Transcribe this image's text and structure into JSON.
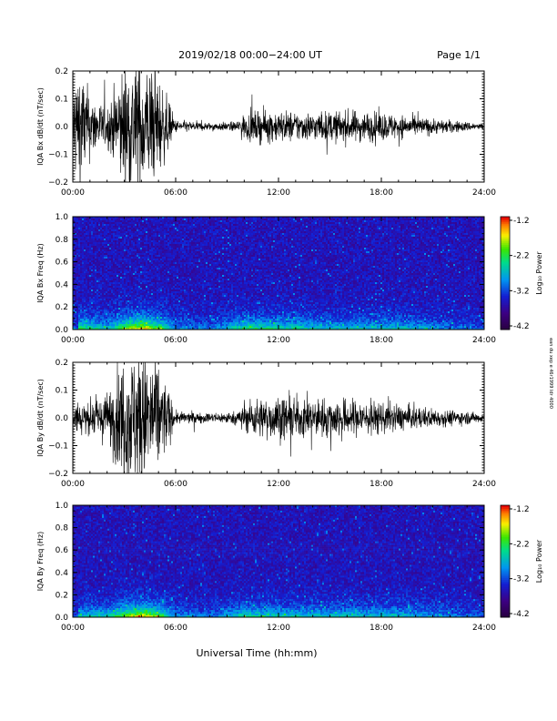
{
  "header": {
    "title": "2019/02/18   00:00−24:00 UT",
    "page": "Page 1/1"
  },
  "side_note": "ean du xep e 46r1999 ldr 4000",
  "xlabel": "Universal Time (hh:mm)",
  "chart_data": [
    {
      "type": "line",
      "panel": "bx_ts",
      "ylabel": "IQA Bx dB/dt (nT/sec)",
      "x_ticks": [
        "00:00",
        "06:00",
        "12:00",
        "18:00",
        "24:00"
      ],
      "y_ticks": [
        "0.2",
        "0.1",
        "0.0",
        "−0.1",
        "−0.2"
      ],
      "ylim": [
        -0.2,
        0.2
      ],
      "xlim_hours": [
        0,
        24
      ],
      "amplitude_envelope": [
        {
          "hour": 0.0,
          "amp": 0.12
        },
        {
          "hour": 0.3,
          "amp": 0.22
        },
        {
          "hour": 1.0,
          "amp": 0.1
        },
        {
          "hour": 2.0,
          "amp": 0.06
        },
        {
          "hour": 3.0,
          "amp": 0.2
        },
        {
          "hour": 4.0,
          "amp": 0.22
        },
        {
          "hour": 5.0,
          "amp": 0.16
        },
        {
          "hour": 6.0,
          "amp": 0.02
        },
        {
          "hour": 8.0,
          "amp": 0.012
        },
        {
          "hour": 9.5,
          "amp": 0.015
        },
        {
          "hour": 10.0,
          "amp": 0.04
        },
        {
          "hour": 11.0,
          "amp": 0.05
        },
        {
          "hour": 12.0,
          "amp": 0.05
        },
        {
          "hour": 14.0,
          "amp": 0.045
        },
        {
          "hour": 16.0,
          "amp": 0.05
        },
        {
          "hour": 18.0,
          "amp": 0.045
        },
        {
          "hour": 20.0,
          "amp": 0.03
        },
        {
          "hour": 24.0,
          "amp": 0.01
        }
      ]
    },
    {
      "type": "heatmap",
      "panel": "bx_spec",
      "ylabel": "IQA Bx Freq (Hz)",
      "x_ticks": [
        "00:00",
        "06:00",
        "12:00",
        "18:00",
        "24:00"
      ],
      "y_ticks": [
        "1.0",
        "0.8",
        "0.6",
        "0.4",
        "0.2",
        "0.0"
      ],
      "ylim": [
        0,
        1.0
      ],
      "colorbar": {
        "label": "Log₁₀ Power",
        "ticks": [
          "-1.2",
          "-2.2",
          "-3.2",
          "-4.2"
        ],
        "range": [
          -4.2,
          -1.2
        ]
      },
      "activity": [
        {
          "hour": 0.3,
          "level": 0.6
        },
        {
          "hour": 2.0,
          "level": 0.4
        },
        {
          "hour": 3.0,
          "level": 0.7
        },
        {
          "hour": 4.0,
          "level": 0.9
        },
        {
          "hour": 5.0,
          "level": 0.7
        },
        {
          "hour": 6.0,
          "level": 0.3
        },
        {
          "hour": 8.0,
          "level": 0.2
        },
        {
          "hour": 10.0,
          "level": 0.55
        },
        {
          "hour": 12.0,
          "level": 0.5
        },
        {
          "hour": 15.0,
          "level": 0.4
        },
        {
          "hour": 19.0,
          "level": 0.4
        },
        {
          "hour": 24.0,
          "level": 0.15
        }
      ]
    },
    {
      "type": "line",
      "panel": "by_ts",
      "ylabel": "IQA By dB/dt (nT/sec)",
      "x_ticks": [
        "00:00",
        "06:00",
        "12:00",
        "18:00",
        "24:00"
      ],
      "y_ticks": [
        "0.2",
        "0.1",
        "0.0",
        "−0.1",
        "−0.2"
      ],
      "ylim": [
        -0.2,
        0.2
      ],
      "xlim_hours": [
        0,
        24
      ],
      "amplitude_envelope": [
        {
          "hour": 0.0,
          "amp": 0.04
        },
        {
          "hour": 0.3,
          "amp": 0.06
        },
        {
          "hour": 1.0,
          "amp": 0.05
        },
        {
          "hour": 2.0,
          "amp": 0.08
        },
        {
          "hour": 3.0,
          "amp": 0.2
        },
        {
          "hour": 4.0,
          "amp": 0.22
        },
        {
          "hour": 5.0,
          "amp": 0.18
        },
        {
          "hour": 6.0,
          "amp": 0.02
        },
        {
          "hour": 8.0,
          "amp": 0.015
        },
        {
          "hour": 9.5,
          "amp": 0.02
        },
        {
          "hour": 10.5,
          "amp": 0.06
        },
        {
          "hour": 12.0,
          "amp": 0.07
        },
        {
          "hour": 14.0,
          "amp": 0.06
        },
        {
          "hour": 16.0,
          "amp": 0.06
        },
        {
          "hour": 18.0,
          "amp": 0.05
        },
        {
          "hour": 20.0,
          "amp": 0.035
        },
        {
          "hour": 24.0,
          "amp": 0.015
        }
      ]
    },
    {
      "type": "heatmap",
      "panel": "by_spec",
      "ylabel": "IQA By Freq (Hz)",
      "x_ticks": [
        "00:00",
        "06:00",
        "12:00",
        "18:00",
        "24:00"
      ],
      "y_ticks": [
        "1.0",
        "0.8",
        "0.6",
        "0.4",
        "0.2",
        "0.0"
      ],
      "ylim": [
        0,
        1.0
      ],
      "colorbar": {
        "label": "Log₁₀ Power",
        "ticks": [
          "-1.2",
          "-2.2",
          "-3.2",
          "-4.2"
        ],
        "range": [
          -4.2,
          -1.2
        ]
      },
      "activity": [
        {
          "hour": 0.3,
          "level": 0.4
        },
        {
          "hour": 2.0,
          "level": 0.45
        },
        {
          "hour": 3.0,
          "level": 0.7
        },
        {
          "hour": 4.0,
          "level": 0.9
        },
        {
          "hour": 5.0,
          "level": 0.7
        },
        {
          "hour": 6.0,
          "level": 0.3
        },
        {
          "hour": 8.0,
          "level": 0.2
        },
        {
          "hour": 10.0,
          "level": 0.5
        },
        {
          "hour": 12.0,
          "level": 0.45
        },
        {
          "hour": 15.0,
          "level": 0.4
        },
        {
          "hour": 19.0,
          "level": 0.4
        },
        {
          "hour": 24.0,
          "level": 0.15
        }
      ]
    }
  ]
}
